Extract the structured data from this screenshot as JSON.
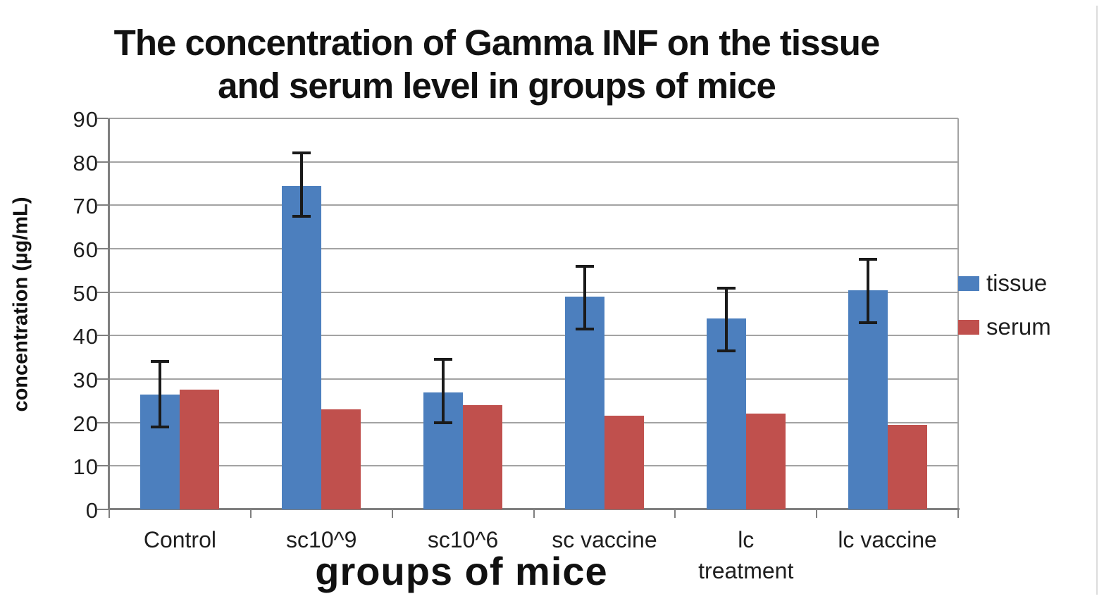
{
  "title": {
    "lines": [
      "The concentration of Gamma INF on the tissue",
      "and serum level in groups of mice"
    ]
  },
  "y_axis": {
    "label": "concentration (µg/mL)",
    "ticks": [
      "90",
      "80",
      "70",
      "60",
      "50",
      "40",
      "30",
      "20",
      "10",
      "0"
    ]
  },
  "x_axis": {
    "label": "groups of mice",
    "category_lines": [
      [
        "Control"
      ],
      [
        "sc10^9"
      ],
      [
        "sc10^6"
      ],
      [
        "sc vaccine"
      ],
      [
        "lc",
        "treatment"
      ],
      [
        "lc vaccine"
      ]
    ]
  },
  "legend": {
    "items": [
      {
        "label": "tissue",
        "color": "#4C7FBE"
      },
      {
        "label": "serum",
        "color": "#C0504D"
      }
    ]
  },
  "colors": {
    "tissue_bar": "#4C7FBE",
    "serum_bar": "#C0504D",
    "gridline": "#A3A3A3",
    "axis": "#7F7F7F",
    "error_bar": "#1A1A1A",
    "text": "#1A1A1A"
  },
  "chart_data": {
    "type": "bar",
    "title": "The concentration of Gamma INF on the tissue and serum level in groups of mice",
    "xlabel": "groups of mice",
    "ylabel": "concentration (µg/mL)",
    "categories": [
      "Control",
      "sc10^9",
      "sc10^6",
      "sc vaccine",
      "lc treatment",
      "lc vaccine"
    ],
    "series": [
      {
        "name": "tissue",
        "color": "#4C7FBE",
        "values": [
          26.5,
          74.5,
          27,
          49,
          44,
          50.5
        ],
        "error_low": [
          19,
          67.5,
          20,
          41.5,
          36.5,
          43
        ],
        "error_high": [
          34,
          82,
          34.5,
          56,
          51,
          57.5
        ]
      },
      {
        "name": "serum",
        "color": "#C0504D",
        "values": [
          27.5,
          23,
          24,
          21.5,
          22,
          19.5
        ]
      }
    ],
    "ylim": [
      0,
      90
    ],
    "y_tick_step": 10,
    "grid": "horizontal",
    "legend_position": "right",
    "error_bars": "tissue series only"
  }
}
